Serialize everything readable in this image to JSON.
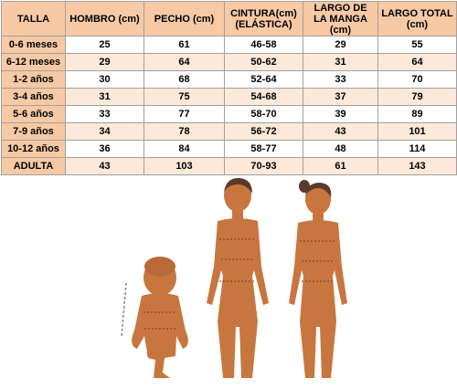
{
  "table": {
    "headers": [
      "TALLA",
      "HOMBRO (cm)",
      "PECHO (cm)",
      "CINTURA(cm) (ELÁSTICA)",
      "LARGO DE LA MANGA (cm)",
      "LARGO TOTAL (cm)"
    ],
    "rows": [
      [
        "0-6 meses",
        "25",
        "61",
        "46-58",
        "29",
        "55"
      ],
      [
        "6-12 meses",
        "29",
        "64",
        "50-62",
        "31",
        "64"
      ],
      [
        "1-2 años",
        "30",
        "68",
        "52-64",
        "33",
        "70"
      ],
      [
        "3-4 años",
        "31",
        "75",
        "54-68",
        "37",
        "79"
      ],
      [
        "5-6 años",
        "33",
        "77",
        "58-70",
        "39",
        "89"
      ],
      [
        "7-9 años",
        "34",
        "78",
        "56-72",
        "43",
        "101"
      ],
      [
        "10-12 años",
        "36",
        "84",
        "58-77",
        "48",
        "114"
      ],
      [
        "ADULTA",
        "43",
        "103",
        "70-93",
        "61",
        "143"
      ]
    ]
  },
  "colors": {
    "header_bg": "#f7c9a5",
    "stripe_bg": "#fde9d9",
    "skin": "#c8763f",
    "hair": "#5a3a2a",
    "measure_line": "#7a3a1a"
  },
  "figures": [
    "baby-figure",
    "woman-figure",
    "girl-figure"
  ]
}
